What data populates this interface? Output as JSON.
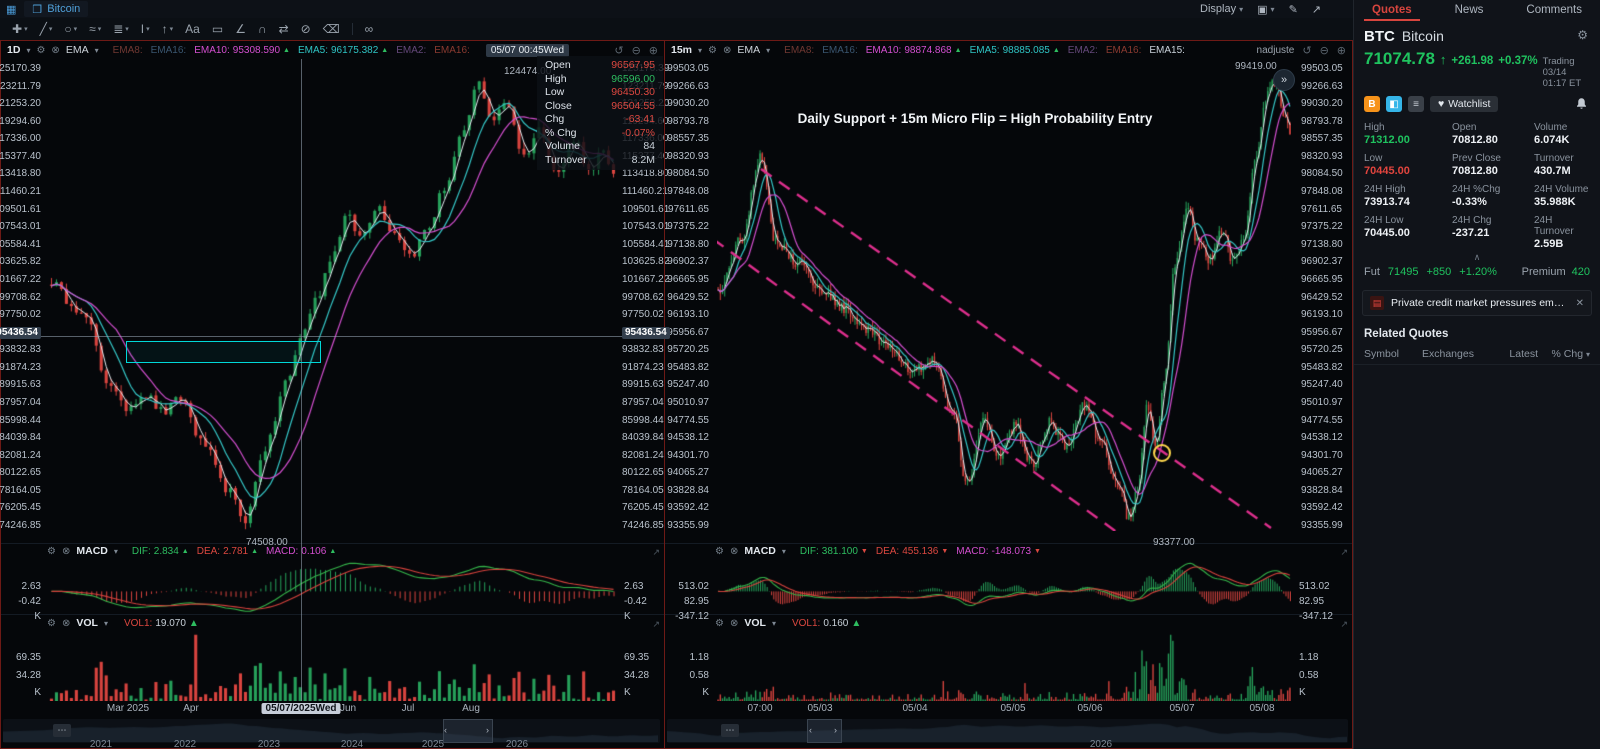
{
  "topbar": {
    "tab_title": "Bitcoin",
    "display_label": "Display"
  },
  "sidebar": {
    "tabs": [
      "Quotes",
      "News",
      "Comments"
    ],
    "symbol": "BTC",
    "name": "Bitcoin",
    "price": "71074.78",
    "change": "+261.98",
    "change_pct": "+0.37%",
    "session": "Trading 03/14 01:17 ET",
    "watchlist_label": "Watchlist",
    "stats": [
      {
        "label": "High",
        "value": "71312.00",
        "cls": "green"
      },
      {
        "label": "Open",
        "value": "70812.80",
        "cls": ""
      },
      {
        "label": "Volume",
        "value": "6.074K",
        "cls": ""
      },
      {
        "label": "Low",
        "value": "70445.00",
        "cls": "red"
      },
      {
        "label": "Prev Close",
        "value": "70812.80",
        "cls": ""
      },
      {
        "label": "Turnover",
        "value": "430.7M",
        "cls": ""
      },
      {
        "label": "24H High",
        "value": "73913.74",
        "cls": ""
      },
      {
        "label": "24H %Chg",
        "value": "-0.33%",
        "cls": ""
      },
      {
        "label": "24H Volume",
        "value": "35.988K",
        "cls": ""
      },
      {
        "label": "24H Low",
        "value": "70445.00",
        "cls": ""
      },
      {
        "label": "24H Chg",
        "value": "-237.21",
        "cls": ""
      },
      {
        "label": "24H Turnover",
        "value": "2.59B",
        "cls": ""
      }
    ],
    "fut_label": "Fut",
    "fut_price": "71495",
    "fut_chg": "+850",
    "fut_pct": "+1.20%",
    "premium_label": "Premium",
    "premium_value": "420",
    "news_headline": "Private credit market pressures emerge: Could ...",
    "related_title": "Related Quotes",
    "table_headers": [
      "Symbol",
      "Exchanges",
      "Latest",
      "% Chg"
    ]
  },
  "left_chart": {
    "timeframe": "1D",
    "ma_group": "EMA",
    "ema_items": [
      {
        "label": "EMA8:",
        "value": "",
        "cls": "dim-red"
      },
      {
        "label": "EMA16:",
        "value": "",
        "cls": "dim-blue"
      },
      {
        "label": "EMA10:",
        "value": "95308.590",
        "cls": "magenta",
        "arrow": "up"
      },
      {
        "label": "EMA5:",
        "value": "96175.382",
        "cls": "cyan",
        "arrow": "up"
      },
      {
        "label": "EMA2:",
        "value": "",
        "cls": "dim-purple"
      },
      {
        "label": "EMA16:",
        "value": "",
        "cls": "dim-red2"
      }
    ],
    "crosshair_time": "05/07 00:45Wed",
    "crosshair_price": "95436.54",
    "high_marker": "124474.00",
    "low_marker": "74508.00",
    "y_ticks": [
      "125170.39",
      "123211.79",
      "121253.20",
      "119294.60",
      "117336.00",
      "115377.40",
      "113418.80",
      "111460.21",
      "109501.61",
      "107543.01",
      "105584.41",
      "103625.82",
      "101667.22",
      "99708.62",
      "97750.02",
      "95436.54",
      "93832.83",
      "91874.23",
      "89915.63",
      "87957.04",
      "85998.44",
      "84039.84",
      "82081.24",
      "80122.65",
      "78164.05",
      "76205.45",
      "74246.85"
    ],
    "crosshair_tick_index": 15,
    "tooltip_rows": [
      {
        "label": "Open",
        "value": "96567.95",
        "cls": "red"
      },
      {
        "label": "High",
        "value": "96596.00",
        "cls": "green"
      },
      {
        "label": "Low",
        "value": "96450.30",
        "cls": "red"
      },
      {
        "label": "Close",
        "value": "96504.55",
        "cls": "red"
      },
      {
        "label": "Chg",
        "value": "-63.41",
        "cls": "red"
      },
      {
        "label": "% Chg",
        "value": "-0.07%",
        "cls": "red"
      },
      {
        "label": "Volume",
        "value": "84",
        "cls": "white"
      },
      {
        "label": "Turnover",
        "value": "8.2M",
        "cls": "white"
      }
    ],
    "macd": {
      "title": "MACD",
      "items": [
        {
          "label": "DIF:",
          "value": "2.834",
          "cls": "green",
          "arrow": "up"
        },
        {
          "label": "DEA:",
          "value": "2.781",
          "cls": "red",
          "arrow": "up"
        },
        {
          "label": "MACD:",
          "value": "0.106",
          "cls": "magenta",
          "arrow": "up"
        }
      ],
      "y_labels": [
        "2.63",
        "-0.42",
        "K"
      ]
    },
    "vol": {
      "title": "VOL",
      "label": "VOL1:",
      "value": "19.070",
      "arrow": "up",
      "y_labels": [
        "69.35",
        "34.28",
        "K"
      ]
    },
    "x_ticks": [
      {
        "t": "Mar 2025",
        "x": 127
      },
      {
        "t": "Apr",
        "x": 190
      },
      {
        "t": "05/07/2025Wed",
        "x": 300,
        "chip": true
      },
      {
        "t": "Jun",
        "x": 347
      },
      {
        "t": "Jul",
        "x": 407
      },
      {
        "t": "Aug",
        "x": 470
      }
    ],
    "nav_years": [
      {
        "t": "2021",
        "x": 100
      },
      {
        "t": "2022",
        "x": 184
      },
      {
        "t": "2023",
        "x": 268
      },
      {
        "t": "2024",
        "x": 351
      },
      {
        "t": "2025",
        "x": 432
      },
      {
        "t": "2026",
        "x": 516
      }
    ]
  },
  "right_chart": {
    "timeframe": "15m",
    "ma_group": "EMA",
    "ema_items": [
      {
        "label": "EMA8:",
        "value": "",
        "cls": "dim-red"
      },
      {
        "label": "EMA16:",
        "value": "",
        "cls": "dim-blue"
      },
      {
        "label": "EMA10:",
        "value": "98874.868",
        "cls": "magenta",
        "arrow": "up"
      },
      {
        "label": "EMA5:",
        "value": "98885.085",
        "cls": "cyan",
        "arrow": "up"
      },
      {
        "label": "EMA2:",
        "value": "",
        "cls": "dim-purple"
      },
      {
        "label": "EMA16:",
        "value": "",
        "cls": "dim-red2"
      },
      {
        "label": "EMA15:",
        "value": "",
        "cls": "white"
      }
    ],
    "adjust_label": "nadjuste",
    "annotation": "Daily Support + 15m Micro Flip = High Probability Entry",
    "high_marker": "99419.00",
    "low_marker": "93377.00",
    "y_ticks": [
      "99503.05",
      "99266.63",
      "99030.20",
      "98793.78",
      "98557.35",
      "98320.93",
      "98084.50",
      "97848.08",
      "97611.65",
      "97375.22",
      "97138.80",
      "96902.37",
      "96665.95",
      "96429.52",
      "96193.10",
      "95956.67",
      "95720.25",
      "95483.82",
      "95247.40",
      "95010.97",
      "94774.55",
      "94538.12",
      "94301.70",
      "94065.27",
      "93828.84",
      "93592.42",
      "93355.99"
    ],
    "crosshair_tick_index": -1,
    "macd": {
      "title": "MACD",
      "items": [
        {
          "label": "DIF:",
          "value": "381.100",
          "cls": "green",
          "arrow": "down"
        },
        {
          "label": "DEA:",
          "value": "455.136",
          "cls": "red",
          "arrow": "down"
        },
        {
          "label": "MACD:",
          "value": "-148.073",
          "cls": "magenta",
          "arrow": "down"
        }
      ],
      "y_labels": [
        "513.02",
        "82.95",
        "-347.12"
      ]
    },
    "vol": {
      "title": "VOL",
      "label": "VOL1:",
      "value": "0.160",
      "arrow": "up",
      "y_labels": [
        "1.18",
        "0.58",
        "K"
      ]
    },
    "x_ticks": [
      {
        "t": "07:00",
        "x": 95
      },
      {
        "t": "05/03",
        "x": 155
      },
      {
        "t": "05/04",
        "x": 250
      },
      {
        "t": "05/05",
        "x": 348
      },
      {
        "t": "05/06",
        "x": 425
      },
      {
        "t": "05/07",
        "x": 517
      },
      {
        "t": "05/08",
        "x": 597
      }
    ],
    "nav_years": [
      {
        "t": "2026",
        "x": 436
      }
    ]
  }
}
